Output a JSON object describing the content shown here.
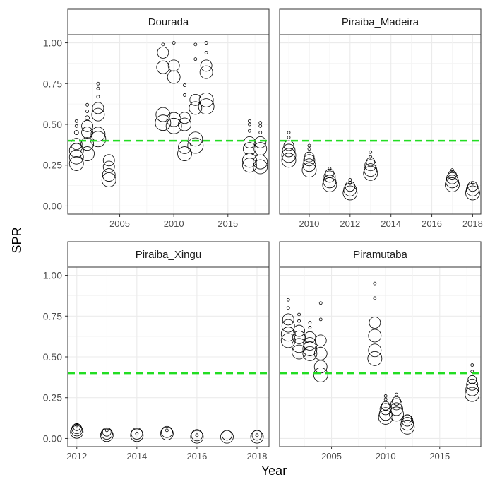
{
  "figure": {
    "ylabel": "SPR",
    "xlabel": "Year"
  },
  "style": {
    "ref_line_color": "#22dd22",
    "grid_color": "#ebebeb",
    "strip_color": "#ffffff",
    "border_color": "#333333",
    "circle_color": "#000000"
  },
  "chart_data": [
    {
      "type": "scatter",
      "panel": "Dourada",
      "title": "Dourada",
      "xlim": [
        2000.2,
        2018.8
      ],
      "ylim": [
        -0.05,
        1.05
      ],
      "xticks": [
        2005,
        2010,
        2015
      ],
      "yticks": [
        0.0,
        0.25,
        0.5,
        0.75,
        1.0
      ],
      "ref_line": 0.4,
      "x_axis_shown": true,
      "y_axis_shown": true,
      "points": [
        [
          2001,
          0.26,
          10
        ],
        [
          2001,
          0.3,
          10
        ],
        [
          2001,
          0.34,
          10
        ],
        [
          2001,
          0.38,
          8
        ],
        [
          2001,
          0.45,
          3
        ],
        [
          2001,
          0.49,
          2
        ],
        [
          2001,
          0.52,
          2
        ],
        [
          2002,
          0.32,
          10
        ],
        [
          2002,
          0.38,
          9
        ],
        [
          2002,
          0.45,
          8
        ],
        [
          2002,
          0.49,
          8
        ],
        [
          2002,
          0.54,
          3
        ],
        [
          2002,
          0.58,
          2
        ],
        [
          2002,
          0.62,
          2
        ],
        [
          2003,
          0.41,
          11
        ],
        [
          2003,
          0.44,
          10
        ],
        [
          2003,
          0.56,
          9
        ],
        [
          2003,
          0.6,
          8
        ],
        [
          2003,
          0.67,
          2
        ],
        [
          2003,
          0.72,
          2
        ],
        [
          2003,
          0.75,
          2
        ],
        [
          2004,
          0.16,
          10
        ],
        [
          2004,
          0.19,
          9
        ],
        [
          2004,
          0.24,
          8
        ],
        [
          2004,
          0.28,
          8
        ],
        [
          2009,
          0.51,
          11
        ],
        [
          2009,
          0.56,
          10
        ],
        [
          2009,
          0.85,
          9
        ],
        [
          2009,
          0.94,
          8
        ],
        [
          2009,
          0.99,
          2
        ],
        [
          2010,
          0.49,
          11
        ],
        [
          2010,
          0.53,
          10
        ],
        [
          2010,
          0.79,
          9
        ],
        [
          2010,
          0.86,
          8
        ],
        [
          2010,
          1.0,
          2
        ],
        [
          2011,
          0.32,
          10
        ],
        [
          2011,
          0.36,
          9
        ],
        [
          2011,
          0.5,
          9
        ],
        [
          2011,
          0.54,
          8
        ],
        [
          2011,
          0.68,
          2
        ],
        [
          2011,
          0.74,
          2
        ],
        [
          2012,
          0.37,
          11
        ],
        [
          2012,
          0.41,
          10
        ],
        [
          2012,
          0.6,
          9
        ],
        [
          2012,
          0.65,
          8
        ],
        [
          2012,
          0.9,
          2
        ],
        [
          2012,
          0.99,
          2
        ],
        [
          2013,
          0.61,
          11
        ],
        [
          2013,
          0.65,
          10
        ],
        [
          2013,
          0.82,
          9
        ],
        [
          2013,
          0.86,
          8
        ],
        [
          2013,
          0.94,
          2
        ],
        [
          2013,
          1.0,
          2
        ],
        [
          2017,
          0.25,
          10
        ],
        [
          2017,
          0.28,
          10
        ],
        [
          2017,
          0.35,
          9
        ],
        [
          2017,
          0.39,
          8
        ],
        [
          2017,
          0.46,
          2
        ],
        [
          2017,
          0.5,
          2
        ],
        [
          2017,
          0.52,
          2
        ],
        [
          2018,
          0.24,
          10
        ],
        [
          2018,
          0.27,
          10
        ],
        [
          2018,
          0.35,
          9
        ],
        [
          2018,
          0.39,
          8
        ],
        [
          2018,
          0.45,
          2
        ],
        [
          2018,
          0.49,
          2
        ],
        [
          2018,
          0.51,
          2
        ]
      ]
    },
    {
      "type": "scatter",
      "panel": "Piraiba_Madeira",
      "title": "Piraiba_Madeira",
      "xlim": [
        2008.55,
        2018.4
      ],
      "ylim": [
        -0.05,
        1.05
      ],
      "xticks": [
        2010,
        2012,
        2014,
        2016,
        2018
      ],
      "yticks": [
        0.0,
        0.25,
        0.5,
        0.75,
        1.0
      ],
      "ref_line": 0.4,
      "x_axis_shown": true,
      "y_axis_shown": false,
      "points": [
        [
          2009,
          0.28,
          10
        ],
        [
          2009,
          0.31,
          10
        ],
        [
          2009,
          0.34,
          9
        ],
        [
          2009,
          0.37,
          7
        ],
        [
          2009,
          0.42,
          2
        ],
        [
          2009,
          0.45,
          2
        ],
        [
          2010,
          0.22,
          10
        ],
        [
          2010,
          0.25,
          9
        ],
        [
          2010,
          0.28,
          8
        ],
        [
          2010,
          0.3,
          7
        ],
        [
          2010,
          0.35,
          2
        ],
        [
          2010,
          0.37,
          2
        ],
        [
          2011,
          0.13,
          10
        ],
        [
          2011,
          0.15,
          9
        ],
        [
          2011,
          0.18,
          8
        ],
        [
          2011,
          0.2,
          6
        ],
        [
          2011,
          0.23,
          2
        ],
        [
          2012,
          0.08,
          10
        ],
        [
          2012,
          0.1,
          9
        ],
        [
          2012,
          0.12,
          7
        ],
        [
          2012,
          0.14,
          2
        ],
        [
          2012,
          0.16,
          2
        ],
        [
          2013,
          0.2,
          10
        ],
        [
          2013,
          0.22,
          9
        ],
        [
          2013,
          0.25,
          8
        ],
        [
          2013,
          0.27,
          6
        ],
        [
          2013,
          0.3,
          2
        ],
        [
          2013,
          0.33,
          2
        ],
        [
          2017,
          0.13,
          10
        ],
        [
          2017,
          0.15,
          9
        ],
        [
          2017,
          0.17,
          8
        ],
        [
          2017,
          0.19,
          6
        ],
        [
          2017,
          0.22,
          2
        ],
        [
          2018,
          0.08,
          10
        ],
        [
          2018,
          0.1,
          9
        ],
        [
          2018,
          0.12,
          7
        ],
        [
          2018,
          0.14,
          2
        ]
      ]
    },
    {
      "type": "scatter",
      "panel": "Piraiba_Xingu",
      "title": "Piraiba_Xingu",
      "xlim": [
        2011.7,
        2018.4
      ],
      "ylim": [
        -0.05,
        1.05
      ],
      "xticks": [
        2012,
        2014,
        2016,
        2018
      ],
      "yticks": [
        0.0,
        0.25,
        0.5,
        0.75,
        1.0
      ],
      "ref_line": 0.4,
      "x_axis_shown": true,
      "y_axis_shown": true,
      "points": [
        [
          2012,
          0.04,
          9
        ],
        [
          2012,
          0.05,
          8
        ],
        [
          2012,
          0.06,
          7
        ],
        [
          2012,
          0.07,
          5
        ],
        [
          2012,
          0.08,
          2
        ],
        [
          2013,
          0.02,
          9
        ],
        [
          2013,
          0.03,
          8
        ],
        [
          2013,
          0.04,
          6
        ],
        [
          2013,
          0.05,
          2
        ],
        [
          2014,
          0.02,
          9
        ],
        [
          2014,
          0.03,
          8
        ],
        [
          2014,
          0.03,
          2
        ],
        [
          2015,
          0.03,
          9
        ],
        [
          2015,
          0.04,
          8
        ],
        [
          2015,
          0.05,
          2
        ],
        [
          2016,
          0.01,
          9
        ],
        [
          2016,
          0.02,
          8
        ],
        [
          2016,
          0.02,
          2
        ],
        [
          2017,
          0.01,
          9
        ],
        [
          2017,
          0.02,
          7
        ],
        [
          2018,
          0.01,
          9
        ],
        [
          2018,
          0.02,
          7
        ],
        [
          2018,
          0.02,
          2
        ]
      ]
    },
    {
      "type": "scatter",
      "panel": "Piramutaba",
      "title": "Piramutaba",
      "xlim": [
        2000.2,
        2018.8
      ],
      "ylim": [
        -0.05,
        1.05
      ],
      "xticks": [
        2005,
        2010,
        2015
      ],
      "yticks": [
        0.0,
        0.25,
        0.5,
        0.75,
        1.0
      ],
      "ref_line": 0.4,
      "x_axis_shown": true,
      "y_axis_shown": false,
      "points": [
        [
          2001,
          0.6,
          10
        ],
        [
          2001,
          0.64,
          10
        ],
        [
          2001,
          0.69,
          9
        ],
        [
          2001,
          0.73,
          8
        ],
        [
          2001,
          0.8,
          2
        ],
        [
          2001,
          0.85,
          2
        ],
        [
          2002,
          0.53,
          10
        ],
        [
          2002,
          0.57,
          10
        ],
        [
          2002,
          0.62,
          9
        ],
        [
          2002,
          0.66,
          8
        ],
        [
          2002,
          0.72,
          2
        ],
        [
          2002,
          0.76,
          2
        ],
        [
          2003,
          0.52,
          10
        ],
        [
          2003,
          0.55,
          10
        ],
        [
          2003,
          0.58,
          9
        ],
        [
          2003,
          0.62,
          8
        ],
        [
          2003,
          0.68,
          2
        ],
        [
          2003,
          0.71,
          2
        ],
        [
          2004,
          0.39,
          10
        ],
        [
          2004,
          0.44,
          9
        ],
        [
          2004,
          0.52,
          9
        ],
        [
          2004,
          0.6,
          8
        ],
        [
          2004,
          0.73,
          2
        ],
        [
          2004,
          0.83,
          2
        ],
        [
          2009,
          0.49,
          10
        ],
        [
          2009,
          0.54,
          9
        ],
        [
          2009,
          0.63,
          9
        ],
        [
          2009,
          0.71,
          8
        ],
        [
          2009,
          0.86,
          2
        ],
        [
          2009,
          0.95,
          2
        ],
        [
          2010,
          0.13,
          10
        ],
        [
          2010,
          0.15,
          9
        ],
        [
          2010,
          0.18,
          8
        ],
        [
          2010,
          0.2,
          6
        ],
        [
          2010,
          0.24,
          2
        ],
        [
          2010,
          0.26,
          2
        ],
        [
          2011,
          0.15,
          10
        ],
        [
          2011,
          0.18,
          9
        ],
        [
          2011,
          0.21,
          8
        ],
        [
          2011,
          0.23,
          6
        ],
        [
          2011,
          0.27,
          2
        ],
        [
          2012,
          0.07,
          10
        ],
        [
          2012,
          0.09,
          9
        ],
        [
          2012,
          0.11,
          8
        ],
        [
          2012,
          0.12,
          6
        ],
        [
          2018,
          0.27,
          10
        ],
        [
          2018,
          0.3,
          9
        ],
        [
          2018,
          0.33,
          8
        ],
        [
          2018,
          0.36,
          6
        ],
        [
          2018,
          0.41,
          2
        ],
        [
          2018,
          0.45,
          2
        ]
      ]
    }
  ]
}
